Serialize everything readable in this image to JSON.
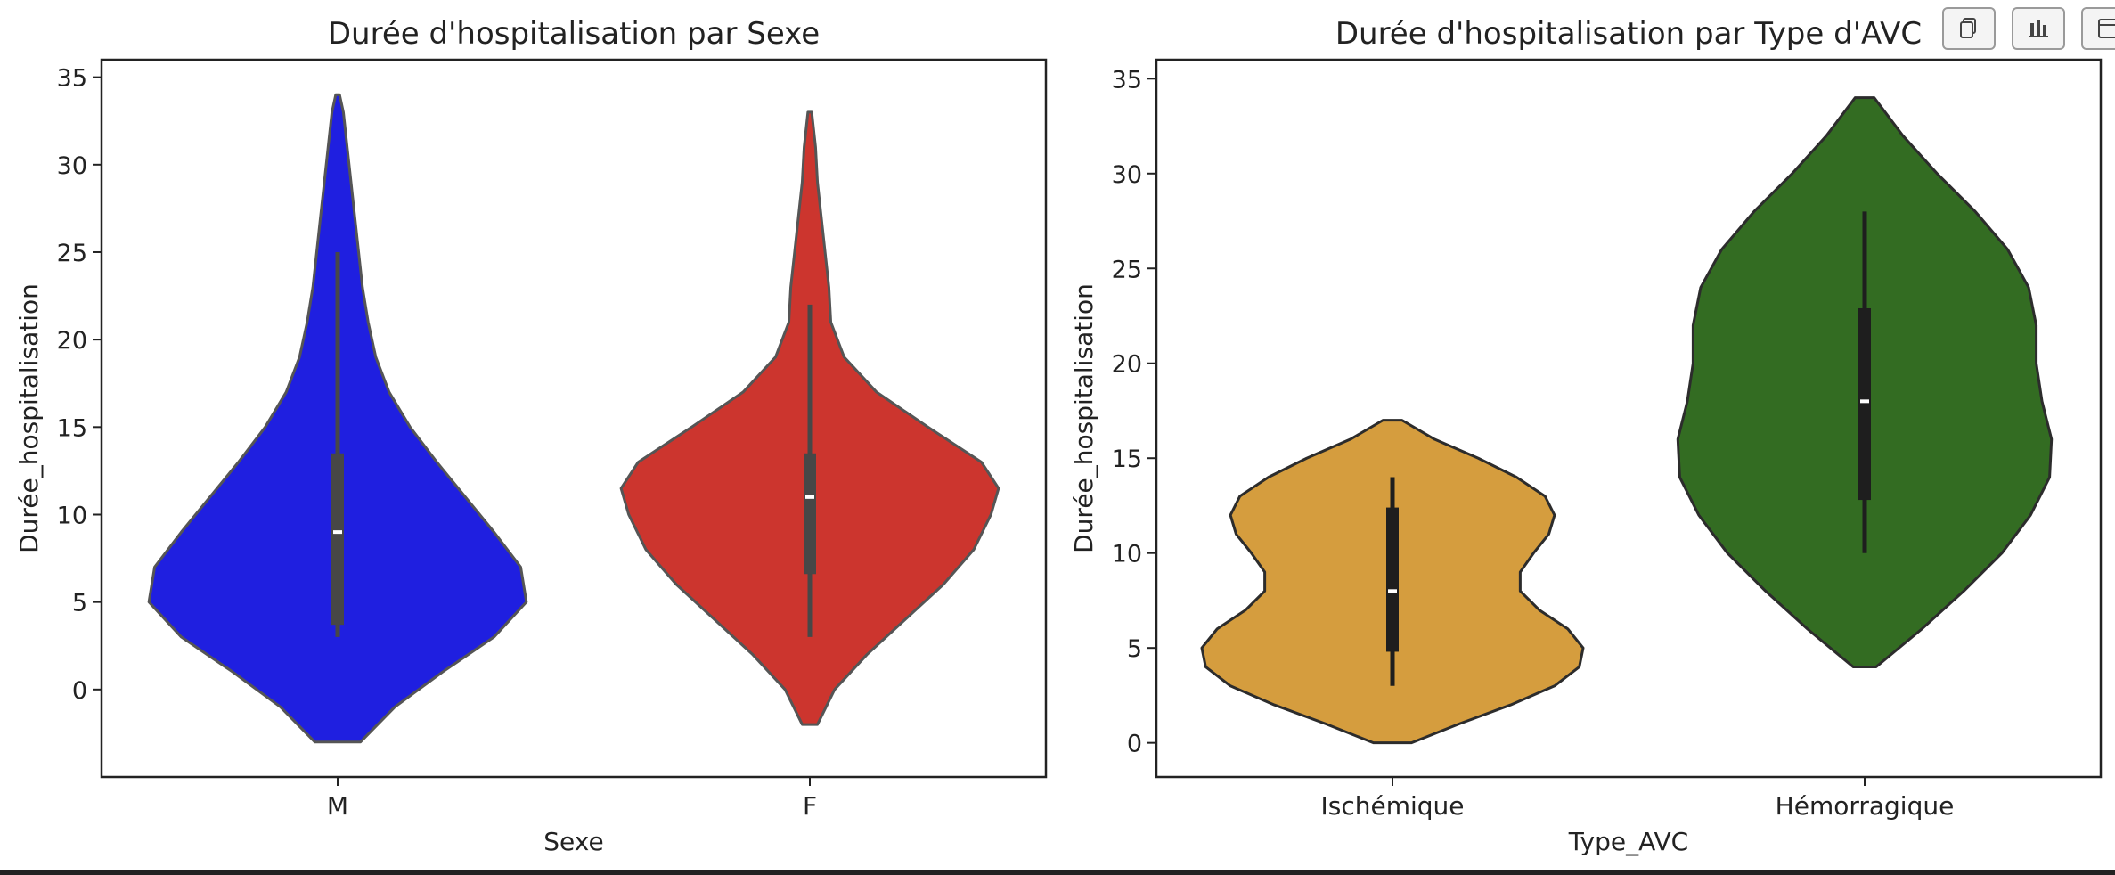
{
  "toolbar": {
    "buttons": [
      {
        "icon": "copy-icon"
      },
      {
        "icon": "bar-chart-icon"
      },
      {
        "icon": "export-icon"
      }
    ]
  },
  "chart_data": [
    {
      "type": "violin",
      "title": "Durée d'hospitalisation par Sexe",
      "xlabel": "Sexe",
      "ylabel": "Durée_hospitalisation",
      "ylim": [
        -5,
        36
      ],
      "yticks": [
        0,
        5,
        10,
        15,
        20,
        25,
        30,
        35
      ],
      "categories": [
        "M",
        "F"
      ],
      "colors": [
        "#1f1fe0",
        "#cc352e"
      ],
      "box_color": "#474747",
      "outline_color": "#555555",
      "violins": [
        {
          "name": "M",
          "color": "#1f1fe0",
          "min": -3,
          "max": 34,
          "q1": 3.7,
          "median": 9,
          "q3": 13.5,
          "whisker_low": 3,
          "whisker_high": 25,
          "density": [
            [
              -3,
              0.12
            ],
            [
              -1,
              0.3
            ],
            [
              1,
              0.55
            ],
            [
              3,
              0.82
            ],
            [
              5,
              0.99
            ],
            [
              7,
              0.96
            ],
            [
              9,
              0.82
            ],
            [
              11,
              0.67
            ],
            [
              13,
              0.52
            ],
            [
              15,
              0.38
            ],
            [
              17,
              0.27
            ],
            [
              19,
              0.2
            ],
            [
              21,
              0.16
            ],
            [
              23,
              0.13
            ],
            [
              25,
              0.11
            ],
            [
              27,
              0.09
            ],
            [
              29,
              0.07
            ],
            [
              31,
              0.05
            ],
            [
              33,
              0.03
            ],
            [
              34,
              0.01
            ]
          ]
        },
        {
          "name": "F",
          "color": "#cc352e",
          "min": -2,
          "max": 33,
          "q1": 6.6,
          "median": 11,
          "q3": 13.5,
          "whisker_low": 3,
          "whisker_high": 22,
          "density": [
            [
              -2,
              0.04
            ],
            [
              0,
              0.13
            ],
            [
              2,
              0.3
            ],
            [
              4,
              0.5
            ],
            [
              6,
              0.7
            ],
            [
              8,
              0.86
            ],
            [
              10,
              0.95
            ],
            [
              11.5,
              0.99
            ],
            [
              13,
              0.9
            ],
            [
              15,
              0.62
            ],
            [
              17,
              0.35
            ],
            [
              19,
              0.18
            ],
            [
              21,
              0.11
            ],
            [
              23,
              0.1
            ],
            [
              25,
              0.08
            ],
            [
              27,
              0.06
            ],
            [
              29,
              0.04
            ],
            [
              31,
              0.03
            ],
            [
              33,
              0.01
            ]
          ]
        }
      ]
    },
    {
      "type": "violin",
      "title": "Durée d'hospitalisation par Type d'AVC",
      "xlabel": "Type_AVC",
      "ylabel": "Durée_hospitalisation",
      "ylim": [
        -1.8,
        36
      ],
      "yticks": [
        0,
        5,
        10,
        15,
        20,
        25,
        30,
        35
      ],
      "categories": [
        "Ischémique",
        "Hémorragique"
      ],
      "colors": [
        "#d59d3e",
        "#336c22"
      ],
      "box_color": "#1e1e1e",
      "outline_color": "#2c2c2c",
      "violins": [
        {
          "name": "Ischémique",
          "color": "#d59d3e",
          "min": 0,
          "max": 17,
          "q1": 4.8,
          "median": 8,
          "q3": 12.4,
          "whisker_low": 3,
          "whisker_high": 14,
          "density": [
            [
              0,
              0.1
            ],
            [
              1,
              0.35
            ],
            [
              2,
              0.62
            ],
            [
              3,
              0.85
            ],
            [
              4,
              0.98
            ],
            [
              5,
              1.0
            ],
            [
              6,
              0.92
            ],
            [
              7,
              0.77
            ],
            [
              8,
              0.67
            ],
            [
              9,
              0.67
            ],
            [
              10,
              0.74
            ],
            [
              11,
              0.82
            ],
            [
              12,
              0.85
            ],
            [
              13,
              0.8
            ],
            [
              14,
              0.65
            ],
            [
              15,
              0.45
            ],
            [
              16,
              0.22
            ],
            [
              17,
              0.05
            ]
          ]
        },
        {
          "name": "Hémorragique",
          "color": "#336c22",
          "min": 4,
          "max": 34,
          "q1": 12.8,
          "median": 18,
          "q3": 22.9,
          "whisker_low": 10,
          "whisker_high": 28,
          "density": [
            [
              4,
              0.06
            ],
            [
              6,
              0.3
            ],
            [
              8,
              0.52
            ],
            [
              10,
              0.72
            ],
            [
              12,
              0.87
            ],
            [
              14,
              0.97
            ],
            [
              16,
              0.98
            ],
            [
              18,
              0.93
            ],
            [
              20,
              0.9
            ],
            [
              22,
              0.9
            ],
            [
              24,
              0.86
            ],
            [
              26,
              0.75
            ],
            [
              28,
              0.58
            ],
            [
              30,
              0.38
            ],
            [
              32,
              0.2
            ],
            [
              34,
              0.05
            ]
          ]
        }
      ]
    }
  ]
}
